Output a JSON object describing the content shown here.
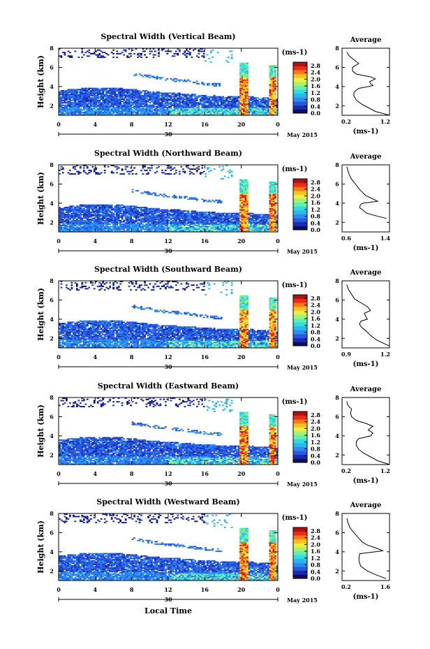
{
  "xlabel": "Local Time",
  "ylabel": "Height (km)",
  "date_label": "May 2015",
  "colorbar": {
    "unit": "(ms-1)",
    "ticks": [
      "0.0",
      "0.4",
      "0.8",
      "1.2",
      "1.6",
      "2.0",
      "2.4",
      "2.8"
    ],
    "tick_values": [
      0.0,
      0.4,
      0.8,
      1.2,
      1.6,
      2.0,
      2.4,
      2.8
    ],
    "range": [
      0,
      3.0
    ],
    "colors": [
      "#10105a",
      "#1c2bb6",
      "#2858e0",
      "#2c8cf0",
      "#28b8f0",
      "#30dce0",
      "#60f0b0",
      "#a8f070",
      "#e8f040",
      "#ffc020",
      "#ff7a10",
      "#f02818",
      "#b01010"
    ]
  },
  "average": {
    "title": "Average",
    "xlabel": "(ms-1)",
    "ylim": [
      1,
      8
    ],
    "yticks": [
      "2",
      "4",
      "6",
      "8"
    ]
  },
  "chart_data": [
    {
      "type": "heatmap",
      "title": "Spectral Width (Vertical Beam)",
      "x_ticks": [
        "0",
        "4",
        "8",
        "12",
        "16",
        "20",
        "0"
      ],
      "day_label": "30",
      "y_ticks": [
        "2",
        "4",
        "6",
        "8"
      ],
      "ylim": [
        1,
        8
      ],
      "xlim": [
        0,
        24
      ],
      "profile": {
        "xlim": [
          0.2,
          1.2
        ],
        "xticks": [
          "0.2",
          "1.2"
        ],
        "x": [
          1.2,
          0.9,
          0.75,
          0.6,
          0.5,
          0.45,
          0.45,
          0.5,
          0.55,
          0.85,
          0.8,
          0.78,
          0.9,
          0.8,
          0.5,
          0.42,
          0.42,
          0.55,
          0.45,
          0.35,
          0.3
        ],
        "y": [
          1,
          1.4,
          1.8,
          2.2,
          2.6,
          3.0,
          3.4,
          3.6,
          3.8,
          4.1,
          4.3,
          4.5,
          4.8,
          5.0,
          5.3,
          5.6,
          6.0,
          6.4,
          6.8,
          7.2,
          7.6
        ]
      }
    },
    {
      "type": "heatmap",
      "title": "Spectral Width (Northward Beam)",
      "x_ticks": [
        "0",
        "4",
        "8",
        "12",
        "16",
        "20",
        "0"
      ],
      "day_label": "30",
      "y_ticks": [
        "2",
        "4",
        "6",
        "8"
      ],
      "ylim": [
        1,
        8
      ],
      "xlim": [
        0,
        24
      ],
      "profile": {
        "xlim": [
          0.6,
          1.4
        ],
        "xticks": [
          "0.6",
          "1.4"
        ],
        "x": [
          1.35,
          1.1,
          1.0,
          0.95,
          0.9,
          0.9,
          0.92,
          0.95,
          1.2,
          1.1,
          1.0,
          0.95,
          0.9,
          0.85,
          0.8,
          0.75,
          0.72,
          0.7,
          0.68
        ],
        "y": [
          2.4,
          2.8,
          3.0,
          3.3,
          3.5,
          3.7,
          3.9,
          4.0,
          4.2,
          4.5,
          4.8,
          5.1,
          5.4,
          5.8,
          6.2,
          6.6,
          7.0,
          7.4,
          7.8
        ]
      }
    },
    {
      "type": "heatmap",
      "title": "Spectral Width (Southward Beam)",
      "x_ticks": [
        "0",
        "4",
        "8",
        "12",
        "16",
        "20",
        "0"
      ],
      "day_label": "30",
      "y_ticks": [
        "2",
        "4",
        "6",
        "8"
      ],
      "ylim": [
        1,
        8
      ],
      "xlim": [
        0,
        24
      ],
      "profile": {
        "xlim": [
          0.9,
          1.2
        ],
        "xticks": [
          "0.9",
          "1.2"
        ],
        "x": [
          1.2,
          1.12,
          1.08,
          1.05,
          1.02,
          1.01,
          1.02,
          1.06,
          1.05,
          1.04,
          1.08,
          1.06,
          1.02,
          0.98,
          0.96,
          0.94,
          0.93
        ],
        "y": [
          1.2,
          1.8,
          2.3,
          2.8,
          3.2,
          3.5,
          3.8,
          4.0,
          4.3,
          4.6,
          4.9,
          5.3,
          5.7,
          6.1,
          6.6,
          7.1,
          7.6
        ]
      }
    },
    {
      "type": "heatmap",
      "title": "Spectral Width (Eastward Beam)",
      "x_ticks": [
        "0",
        "4",
        "8",
        "12",
        "16",
        "20",
        "0"
      ],
      "day_label": "30",
      "y_ticks": [
        "2",
        "4",
        "6",
        "8"
      ],
      "ylim": [
        1,
        8
      ],
      "xlim": [
        0,
        24
      ],
      "profile": {
        "xlim": [
          0.2,
          1.2
        ],
        "xticks": [
          "0.2",
          "1.2"
        ],
        "x": [
          1.2,
          0.95,
          0.8,
          0.65,
          0.55,
          0.5,
          0.5,
          0.55,
          0.8,
          0.85,
          0.75,
          0.85,
          0.7,
          0.5,
          0.4,
          0.38,
          0.4,
          0.32,
          0.3
        ],
        "y": [
          1,
          1.4,
          1.8,
          2.2,
          2.6,
          3.0,
          3.4,
          3.7,
          4.0,
          4.3,
          4.6,
          5.0,
          5.3,
          5.6,
          6.0,
          6.4,
          6.8,
          7.2,
          7.6
        ]
      }
    },
    {
      "type": "heatmap",
      "title": "Spectral Width (Westward Beam)",
      "x_ticks": [
        "0",
        "4",
        "8",
        "12",
        "16",
        "20",
        "0"
      ],
      "day_label": "30",
      "y_ticks": [
        "2",
        "4",
        "6",
        "8"
      ],
      "ylim": [
        1,
        8
      ],
      "xlim": [
        0,
        24
      ],
      "profile": {
        "xlim": [
          0.2,
          1.6
        ],
        "xticks": [
          "0.2",
          "1.6"
        ],
        "x": [
          1.5,
          1.2,
          0.95,
          0.75,
          0.7,
          0.7,
          0.72,
          1.4,
          1.2,
          0.95,
          0.8,
          0.7,
          0.6,
          0.5,
          0.42,
          0.38,
          0.34
        ],
        "y": [
          1.2,
          1.6,
          2.0,
          2.5,
          3.0,
          3.4,
          3.8,
          4.1,
          4.4,
          4.7,
          5.0,
          5.4,
          5.8,
          6.2,
          6.6,
          7.0,
          7.5
        ]
      }
    }
  ]
}
